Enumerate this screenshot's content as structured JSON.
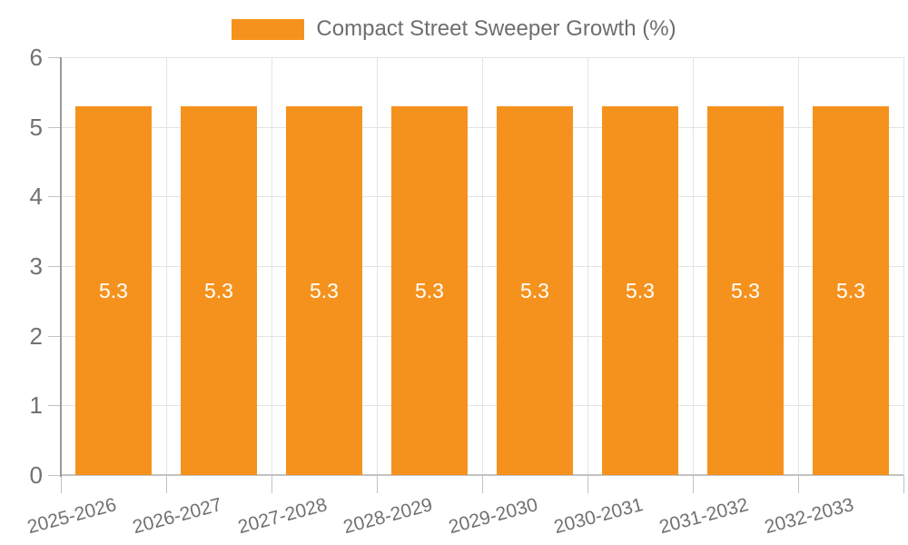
{
  "chart_data": {
    "type": "bar",
    "legend_label": "Compact Street Sweeper Growth (%)",
    "legend_position": "top",
    "categories": [
      "2025-2026",
      "2026-2027",
      "2027-2028",
      "2028-2029",
      "2029-2030",
      "2030-2031",
      "2031-2032",
      "2032-2033"
    ],
    "series": [
      {
        "name": "Compact Street Sweeper Growth (%)",
        "values": [
          5.3,
          5.3,
          5.3,
          5.3,
          5.3,
          5.3,
          5.3,
          5.3
        ],
        "value_labels": [
          "5.3",
          "5.3",
          "5.3",
          "5.3",
          "5.3",
          "5.3",
          "5.3",
          "5.3"
        ]
      }
    ],
    "ylim": [
      0,
      6
    ],
    "ytick_labels": [
      "0",
      "1",
      "2",
      "3",
      "4",
      "5",
      "6"
    ],
    "xlabel": "",
    "ylabel": "",
    "grid": "on",
    "colors": {
      "bar": "#F5921E",
      "axis_text": "#717171",
      "legend_text": "#6E6E6E",
      "gridline": "#E3E3E3",
      "y_axis_line": "#999999",
      "x_axis_line": "#C2C2C2",
      "tick": "#C2C2C2",
      "bar_label_text": "#FFFFFF"
    }
  }
}
